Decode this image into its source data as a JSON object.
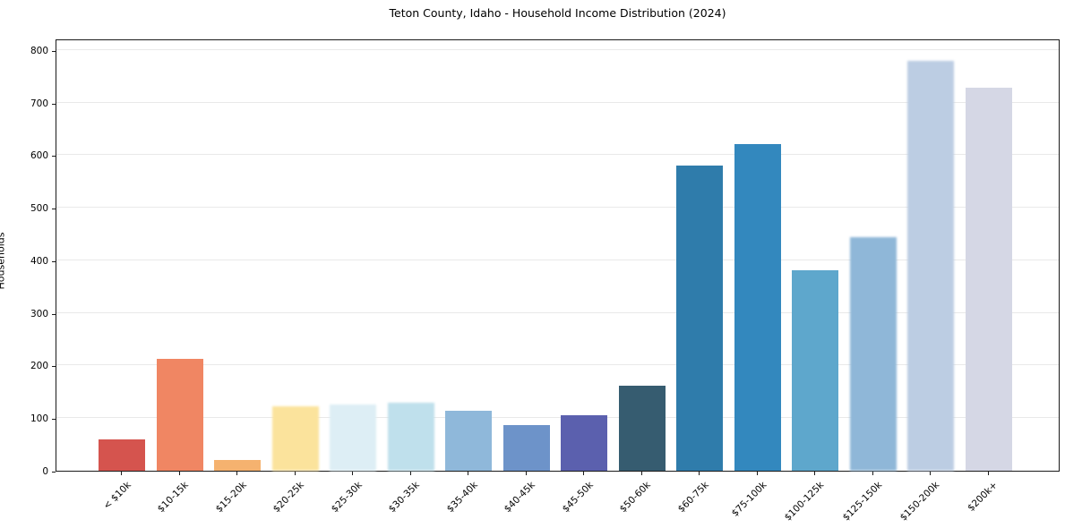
{
  "title": "Teton County, Idaho - Household Income Distribution (2024)",
  "chart_data": {
    "type": "bar",
    "title": "Teton County, Idaho - Household Income Distribution (2024)",
    "xlabel": "",
    "ylabel": "Households",
    "ylim": [
      0,
      822
    ],
    "yticks": [
      0,
      100,
      200,
      300,
      400,
      500,
      600,
      700,
      800
    ],
    "grid": "horizontal",
    "legend": "none",
    "categories": [
      "< $10k",
      "$10-15k",
      "$15-20k",
      "$20-25k",
      "$25-30k",
      "$30-35k",
      "$35-40k",
      "$40-45k",
      "$45-50k",
      "$50-60k",
      "$60-75k",
      "$75-100k",
      "$100-125k",
      "$125-150k",
      "$150-200k",
      "$200k+"
    ],
    "values": [
      60,
      212,
      20,
      122,
      126,
      130,
      114,
      86,
      105,
      161,
      580,
      622,
      381,
      445,
      780,
      728
    ],
    "bar_colors": [
      "#d5544e",
      "#f08663",
      "#f5b26f",
      "#fbe39c",
      "#ddeef5",
      "#bfe0ec",
      "#8fb8da",
      "#6d93c9",
      "#5b60ae",
      "#365c70",
      "#2f7cab",
      "#3388be",
      "#5ea7cc",
      "#8fb7d8",
      "#bccde3",
      "#d5d7e5"
    ],
    "soft_bar_indices": [
      3,
      4,
      5,
      13,
      14
    ]
  },
  "colors": {
    "background": "#ffffff",
    "grid": "#e9e9e9",
    "spine": "#1a1a1a",
    "text": "#000000"
  }
}
